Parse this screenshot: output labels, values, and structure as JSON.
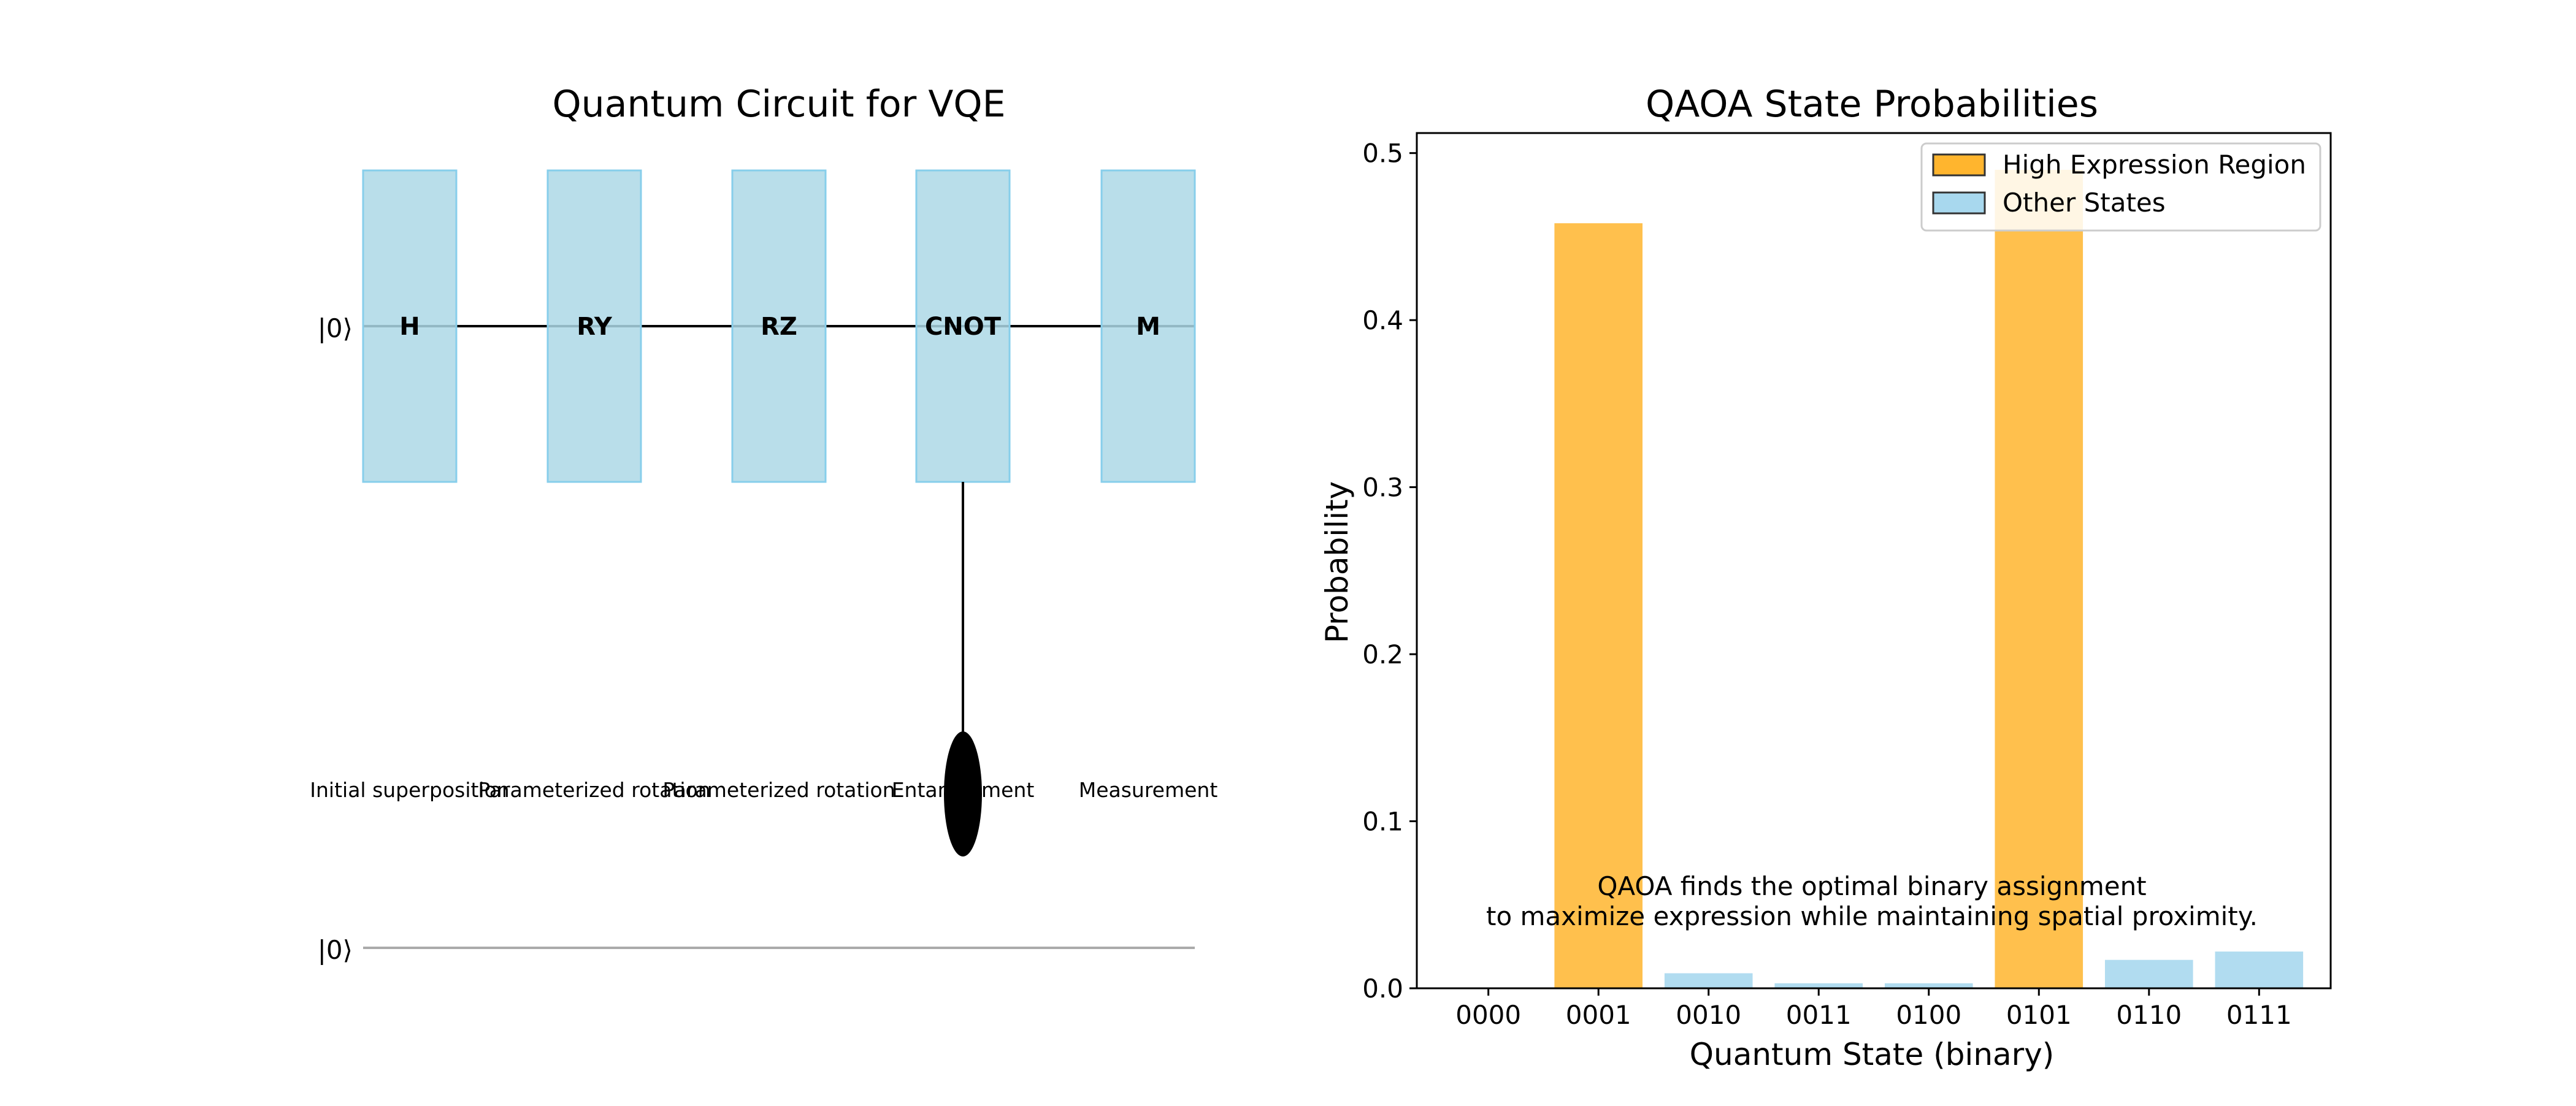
{
  "circuit": {
    "title": "Quantum Circuit for VQE",
    "qubit_labels": [
      "|0⟩",
      "|0⟩"
    ],
    "gates": [
      {
        "label": "H",
        "description": "Initial superposition"
      },
      {
        "label": "RY",
        "description": "Parameterized rotation"
      },
      {
        "label": "RZ",
        "description": "Parameterized rotation"
      },
      {
        "label": "CNOT",
        "description": "Entanglement"
      },
      {
        "label": "M",
        "description": "Measurement"
      }
    ],
    "gate_color": "#add8e6",
    "wire_color": "#000000",
    "second_wire_color": "#aaaaaa"
  },
  "chart_data": {
    "type": "bar",
    "title": "QAOA State Probabilities",
    "xlabel": "Quantum State (binary)",
    "ylabel": "Probability",
    "categories": [
      "0000",
      "0001",
      "0010",
      "0011",
      "0100",
      "0101",
      "0110",
      "0111"
    ],
    "values": [
      0.0,
      0.458,
      0.009,
      0.003,
      0.003,
      0.49,
      0.017,
      0.022
    ],
    "groups": [
      "Other States",
      "High Expression Region",
      "Other States",
      "Other States",
      "Other States",
      "High Expression Region",
      "Other States",
      "Other States"
    ],
    "ylim": [
      0,
      0.512
    ],
    "yticks": [
      "0.0",
      "0.1",
      "0.2",
      "0.3",
      "0.4",
      "0.5"
    ],
    "legend": [
      {
        "name": "High Expression Region",
        "color": "#ffb52e"
      },
      {
        "name": "Other States",
        "color": "#a8d8ee"
      }
    ],
    "legend_position": "top-right",
    "grid": false,
    "annotation": [
      "QAOA finds the optimal binary assignment",
      "to maximize expression while maintaining spatial proximity."
    ]
  }
}
